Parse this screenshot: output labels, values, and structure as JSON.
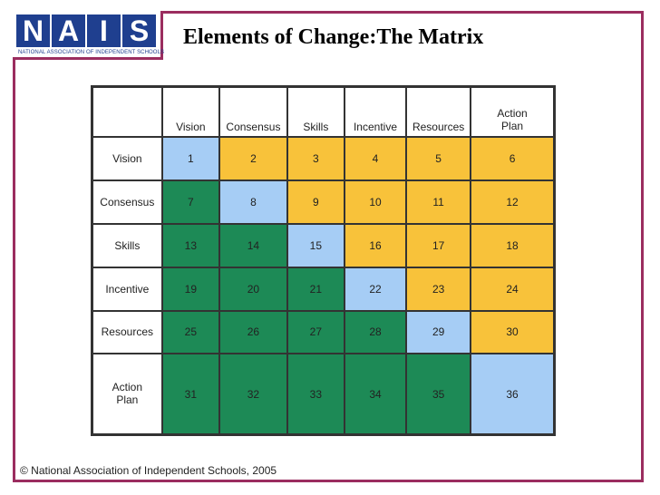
{
  "logo": {
    "letters": [
      "N",
      "A",
      "I",
      "S"
    ],
    "caption": "NATIONAL ASSOCIATION OF INDEPENDENT SCHOOLS",
    "colors": {
      "blue": "#1f3f8f",
      "maroon": "#9b2d5f"
    }
  },
  "title": "Elements of Change:The Matrix",
  "matrix": {
    "columns": [
      "Vision",
      "Consensus",
      "Skills",
      "Incentive",
      "Resources",
      "Action Plan"
    ],
    "rows": [
      {
        "label": "Vision",
        "cells": [
          "1",
          "2",
          "3",
          "4",
          "5",
          "6"
        ]
      },
      {
        "label": "Consensus",
        "cells": [
          "7",
          "8",
          "9",
          "10",
          "11",
          "12"
        ]
      },
      {
        "label": "Skills",
        "cells": [
          "13",
          "14",
          "15",
          "16",
          "17",
          "18"
        ]
      },
      {
        "label": "Incentive",
        "cells": [
          "19",
          "20",
          "21",
          "22",
          "23",
          "24"
        ]
      },
      {
        "label": "Resources",
        "cells": [
          "25",
          "26",
          "27",
          "28",
          "29",
          "30"
        ]
      },
      {
        "label": "Action Plan",
        "cells": [
          "31",
          "32",
          "33",
          "34",
          "35",
          "36"
        ]
      }
    ],
    "colors": {
      "diagonal": "#a6cdf5",
      "upper": "#f8c23a",
      "lower": "#1d8a56"
    }
  },
  "footer": "© National Association of Independent Schools, 2005"
}
